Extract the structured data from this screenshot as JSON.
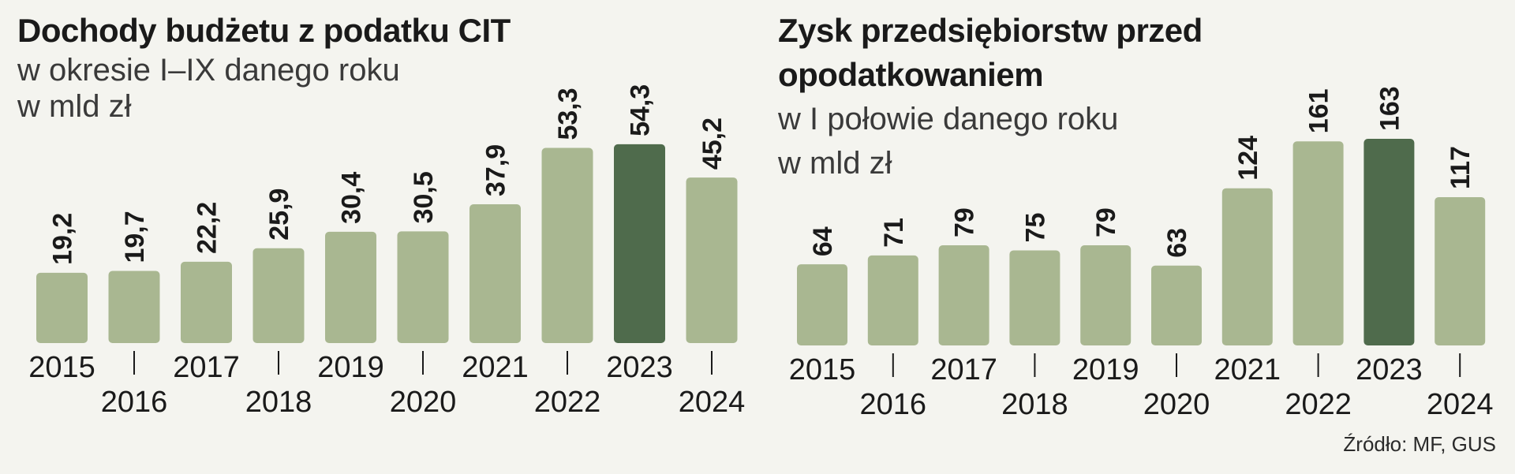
{
  "chart_data": [
    {
      "type": "bar",
      "title": "Dochody budżetu z podatku CIT",
      "subtitle_lines": [
        "w okresie I–IX danego roku",
        "w mld zł"
      ],
      "categories": [
        "2015",
        "2016",
        "2017",
        "2018",
        "2019",
        "2020",
        "2021",
        "2022",
        "2023",
        "2024"
      ],
      "values": [
        19.2,
        19.7,
        22.2,
        25.9,
        30.4,
        30.5,
        37.9,
        53.3,
        54.3,
        45.2
      ],
      "value_labels": [
        "19,2",
        "19,7",
        "22,2",
        "25,9",
        "30,4",
        "30,5",
        "37,9",
        "53,3",
        "54,3",
        "45,2"
      ],
      "highlight_category": "2023",
      "ylim": [
        0,
        56
      ]
    },
    {
      "type": "bar",
      "title_lines": [
        "Zysk przedsiębiorstw przed",
        "opodatkowaniem"
      ],
      "subtitle_lines": [
        "w I połowie danego roku",
        "w mld zł"
      ],
      "categories": [
        "2015",
        "2016",
        "2017",
        "2018",
        "2019",
        "2020",
        "2021",
        "2022",
        "2023",
        "2024"
      ],
      "values": [
        64,
        71,
        79,
        75,
        79,
        63,
        124,
        161,
        163,
        117
      ],
      "value_labels": [
        "64",
        "71",
        "79",
        "75",
        "79",
        "63",
        "124",
        "161",
        "163",
        "117"
      ],
      "highlight_category": "2023",
      "ylim": [
        0,
        168
      ]
    }
  ],
  "source": "Źródło: MF, GUS",
  "colors": {
    "bar": "#a9b791",
    "bar_highlight": "#4f6b4c",
    "text": "#1a1a1a",
    "background": "#f4f4ef"
  }
}
